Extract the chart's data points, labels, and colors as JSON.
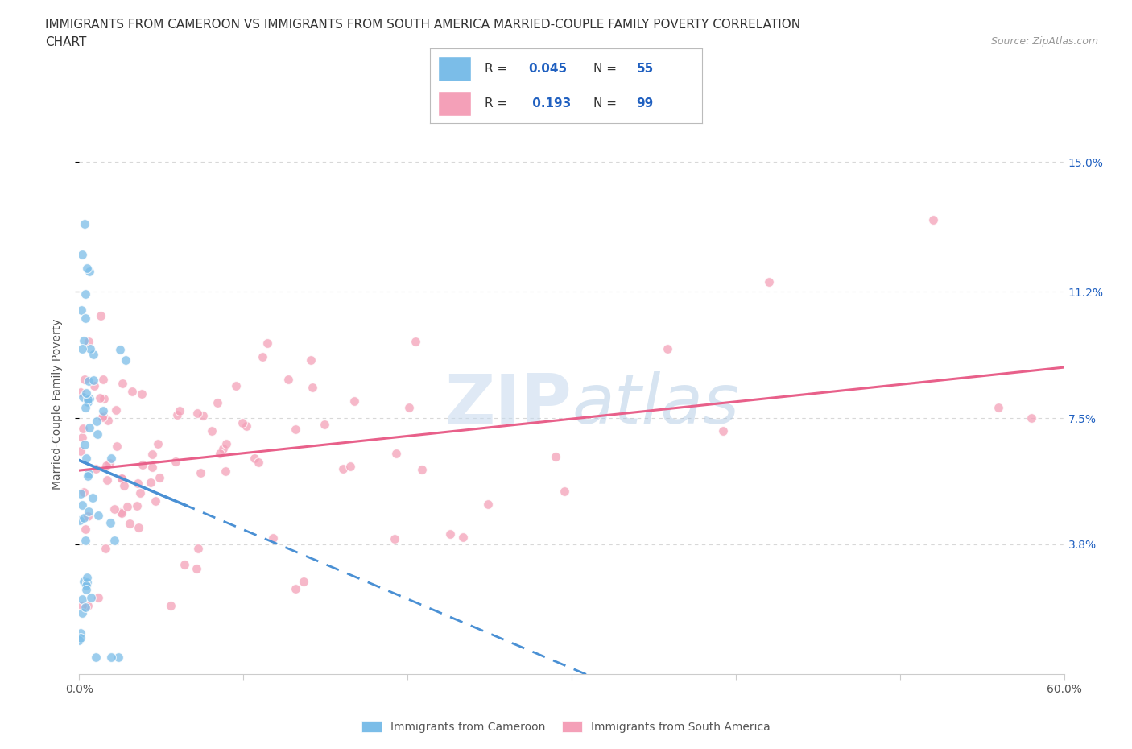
{
  "title_line1": "IMMIGRANTS FROM CAMEROON VS IMMIGRANTS FROM SOUTH AMERICA MARRIED-COUPLE FAMILY POVERTY CORRELATION",
  "title_line2": "CHART",
  "source_text": "Source: ZipAtlas.com",
  "ylabel": "Married-Couple Family Poverty",
  "x_min": 0.0,
  "x_max": 0.6,
  "y_min": 0.0,
  "y_max": 0.158,
  "y_ticks": [
    0.038,
    0.075,
    0.112,
    0.15
  ],
  "y_tick_labels": [
    "3.8%",
    "7.5%",
    "11.2%",
    "15.0%"
  ],
  "cameroon_color": "#7bbde8",
  "south_america_color": "#f4a0b8",
  "cameroon_trend_color": "#4a90d4",
  "south_america_trend_color": "#e8608a",
  "watermark_zip": "ZIP",
  "watermark_atlas": "atlas",
  "watermark_color": "#ccdff0",
  "background_color": "#ffffff",
  "grid_color": "#d8d8d8",
  "legend_text_color": "#333333",
  "legend_value_color": "#2060c0",
  "source_color": "#999999",
  "title_color": "#333333",
  "axis_color": "#555555"
}
